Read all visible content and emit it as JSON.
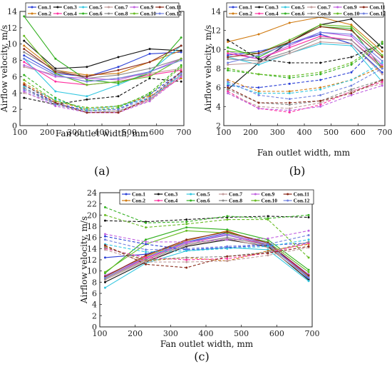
{
  "legend_labels": [
    "Con.1",
    "Con.2",
    "Con.3",
    "Con.4",
    "Con.5",
    "Con.6",
    "Con.7",
    "Con.8",
    "Con.9",
    "Con.10",
    "Con.11",
    "Con.12"
  ],
  "colors": {
    "Con.1": "#2a3fd6",
    "Con.2": "#d07a10",
    "Con.3": "#111111",
    "Con.4": "#ff30a0",
    "Con.5": "#33c7e0",
    "Con.6": "#33b021",
    "Con.7": "#c09a9a",
    "Con.8": "#888888",
    "Con.9": "#c060e0",
    "Con.10": "#66bb22",
    "Con.11": "#8a2a1a",
    "Con.12": "#7080e0"
  },
  "chart_data": [
    {
      "type": "line",
      "panel_label": "(a)",
      "xlabel": "Fan outlet width, mm",
      "ylabel": "Airflow velocity, m/s",
      "xlim": [
        100,
        700
      ],
      "ylim": [
        0,
        14
      ],
      "xticks": [
        100,
        200,
        300,
        400,
        500,
        600,
        700
      ],
      "yticks": [
        0,
        2,
        4,
        6,
        8,
        10,
        12,
        14
      ],
      "x": [
        115,
        230,
        345,
        460,
        575,
        690
      ],
      "series": [
        {
          "name": "Con.1",
          "style": "solid",
          "values": [
            8.6,
            6.4,
            6.0,
            7.2,
            8.8,
            9.0
          ]
        },
        {
          "name": "Con.2",
          "style": "solid",
          "values": [
            9.8,
            6.8,
            6.2,
            6.4,
            7.8,
            9.2
          ]
        },
        {
          "name": "Con.3",
          "style": "solid",
          "values": [
            10.4,
            7.0,
            7.2,
            8.4,
            9.4,
            9.2
          ]
        },
        {
          "name": "Con.4",
          "style": "solid",
          "values": [
            7.8,
            5.4,
            5.0,
            5.4,
            6.2,
            6.8
          ]
        },
        {
          "name": "Con.5",
          "style": "solid",
          "values": [
            8.2,
            4.2,
            3.6,
            5.0,
            6.6,
            9.8
          ]
        },
        {
          "name": "Con.6",
          "style": "solid",
          "values": [
            13.4,
            8.2,
            5.6,
            5.2,
            6.4,
            10.8
          ]
        },
        {
          "name": "Con.7",
          "style": "solid",
          "values": [
            7.2,
            6.2,
            5.4,
            5.8,
            6.4,
            7.0
          ]
        },
        {
          "name": "Con.8",
          "style": "solid",
          "values": [
            9.0,
            6.8,
            5.8,
            6.2,
            7.0,
            8.2
          ]
        },
        {
          "name": "Con.9",
          "style": "solid",
          "values": [
            7.4,
            6.0,
            5.8,
            5.6,
            6.6,
            8.2
          ]
        },
        {
          "name": "Con.10",
          "style": "solid",
          "values": [
            11.0,
            6.4,
            5.0,
            5.4,
            6.0,
            8.2
          ]
        },
        {
          "name": "Con.11",
          "style": "solid",
          "values": [
            9.4,
            6.6,
            6.0,
            6.8,
            7.8,
            9.8
          ]
        },
        {
          "name": "Con.12",
          "style": "solid",
          "values": [
            8.2,
            6.2,
            5.4,
            5.8,
            6.6,
            8.0
          ]
        },
        {
          "name": "Con.1",
          "style": "dashed",
          "values": [
            4.6,
            2.8,
            1.8,
            2.0,
            3.8,
            6.6
          ]
        },
        {
          "name": "Con.2",
          "style": "dashed",
          "values": [
            5.2,
            3.0,
            2.0,
            2.4,
            3.6,
            5.8
          ]
        },
        {
          "name": "Con.3",
          "style": "dashed",
          "values": [
            3.4,
            2.6,
            3.2,
            3.6,
            5.8,
            5.4
          ]
        },
        {
          "name": "Con.4",
          "style": "dashed",
          "values": [
            5.0,
            2.8,
            1.6,
            1.6,
            3.2,
            6.0
          ]
        },
        {
          "name": "Con.5",
          "style": "dashed",
          "values": [
            4.8,
            3.2,
            2.0,
            2.4,
            3.4,
            6.2
          ]
        },
        {
          "name": "Con.6",
          "style": "dashed",
          "values": [
            6.2,
            3.4,
            1.8,
            2.2,
            4.0,
            7.4
          ]
        },
        {
          "name": "Con.7",
          "style": "dashed",
          "values": [
            4.0,
            2.8,
            1.6,
            1.8,
            3.0,
            6.6
          ]
        },
        {
          "name": "Con.8",
          "style": "dashed",
          "values": [
            4.6,
            2.6,
            1.6,
            1.8,
            3.2,
            6.2
          ]
        },
        {
          "name": "Con.9",
          "style": "dashed",
          "values": [
            4.2,
            2.4,
            1.6,
            1.6,
            3.0,
            6.0
          ]
        },
        {
          "name": "Con.10",
          "style": "dashed",
          "values": [
            5.6,
            3.0,
            2.2,
            2.4,
            3.8,
            7.2
          ]
        },
        {
          "name": "Con.11",
          "style": "dashed",
          "values": [
            5.0,
            2.8,
            1.6,
            1.6,
            3.4,
            6.6
          ]
        },
        {
          "name": "Con.12",
          "style": "dashed",
          "values": [
            4.4,
            2.6,
            1.8,
            2.0,
            3.4,
            6.4
          ]
        }
      ]
    },
    {
      "type": "line",
      "panel_label": "(b)",
      "xlabel": "Fan outlet width, mm",
      "ylabel": "Airflow velocity, m/s",
      "xlim": [
        100,
        700
      ],
      "ylim": [
        2,
        14
      ],
      "xticks": [
        100,
        200,
        300,
        400,
        500,
        600,
        700
      ],
      "yticks": [
        2,
        4,
        6,
        8,
        10,
        12,
        14
      ],
      "x": [
        115,
        230,
        345,
        460,
        575,
        690
      ],
      "series": [
        {
          "name": "Con.1",
          "style": "solid",
          "values": [
            9.4,
            9.8,
            10.6,
            11.6,
            10.6,
            7.6
          ]
        },
        {
          "name": "Con.2",
          "style": "solid",
          "values": [
            10.8,
            11.6,
            12.8,
            13.4,
            12.6,
            9.8
          ]
        },
        {
          "name": "Con.3",
          "style": "solid",
          "values": [
            5.8,
            8.6,
            10.8,
            12.6,
            13.2,
            10.2
          ]
        },
        {
          "name": "Con.4",
          "style": "solid",
          "values": [
            9.6,
            9.0,
            10.2,
            11.4,
            11.0,
            8.2
          ]
        },
        {
          "name": "Con.5",
          "style": "solid",
          "values": [
            9.2,
            8.4,
            9.6,
            10.6,
            10.4,
            6.6
          ]
        },
        {
          "name": "Con.6",
          "style": "solid",
          "values": [
            10.2,
            9.2,
            10.8,
            12.4,
            12.2,
            8.0
          ]
        },
        {
          "name": "Con.7",
          "style": "solid",
          "values": [
            8.4,
            8.6,
            9.6,
            10.8,
            10.6,
            7.4
          ]
        },
        {
          "name": "Con.8",
          "style": "solid",
          "values": [
            9.0,
            8.8,
            9.8,
            11.2,
            11.0,
            8.0
          ]
        },
        {
          "name": "Con.9",
          "style": "solid",
          "values": [
            9.8,
            9.0,
            10.4,
            11.8,
            11.4,
            8.4
          ]
        },
        {
          "name": "Con.10",
          "style": "solid",
          "values": [
            9.8,
            9.6,
            11.0,
            12.6,
            12.4,
            9.4
          ]
        },
        {
          "name": "Con.11",
          "style": "solid",
          "values": [
            9.2,
            9.6,
            10.8,
            12.4,
            12.0,
            9.2
          ]
        },
        {
          "name": "Con.12",
          "style": "solid",
          "values": [
            8.6,
            9.4,
            10.6,
            11.8,
            11.6,
            8.8
          ]
        },
        {
          "name": "Con.1",
          "style": "dashed",
          "values": [
            6.2,
            6.0,
            6.4,
            6.8,
            7.6,
            10.8
          ]
        },
        {
          "name": "Con.2",
          "style": "dashed",
          "values": [
            6.8,
            5.6,
            5.6,
            6.0,
            6.8,
            8.2
          ]
        },
        {
          "name": "Con.3",
          "style": "dashed",
          "values": [
            11.0,
            9.0,
            8.6,
            8.6,
            9.2,
            10.6
          ]
        },
        {
          "name": "Con.4",
          "style": "dashed",
          "values": [
            5.6,
            3.8,
            3.4,
            4.2,
            5.6,
            6.6
          ]
        },
        {
          "name": "Con.5",
          "style": "dashed",
          "values": [
            6.4,
            5.4,
            5.4,
            5.8,
            6.8,
            8.6
          ]
        },
        {
          "name": "Con.6",
          "style": "dashed",
          "values": [
            7.8,
            7.4,
            7.0,
            7.4,
            8.4,
            10.6
          ]
        },
        {
          "name": "Con.7",
          "style": "dashed",
          "values": [
            5.4,
            4.0,
            3.8,
            4.4,
            5.6,
            6.4
          ]
        },
        {
          "name": "Con.8",
          "style": "dashed",
          "values": [
            5.8,
            4.4,
            4.2,
            4.6,
            5.8,
            6.8
          ]
        },
        {
          "name": "Con.9",
          "style": "dashed",
          "values": [
            5.4,
            3.8,
            3.6,
            4.0,
            5.2,
            6.2
          ]
        },
        {
          "name": "Con.10",
          "style": "dashed",
          "values": [
            8.0,
            7.4,
            7.2,
            7.6,
            8.6,
            10.8
          ]
        },
        {
          "name": "Con.11",
          "style": "dashed",
          "values": [
            6.0,
            4.4,
            4.4,
            4.6,
            5.4,
            6.8
          ]
        },
        {
          "name": "Con.12",
          "style": "dashed",
          "values": [
            6.6,
            5.2,
            4.8,
            5.2,
            6.2,
            8.0
          ]
        }
      ]
    },
    {
      "type": "line",
      "panel_label": "(c)",
      "xlabel": "Fan outlet width, mm",
      "ylabel": "Airflow velocity, m/s",
      "xlim": [
        100,
        700
      ],
      "ylim": [
        0,
        24
      ],
      "xticks": [
        100,
        200,
        300,
        400,
        500,
        600,
        700
      ],
      "yticks": [
        0,
        2,
        4,
        6,
        8,
        10,
        12,
        14,
        16,
        18,
        20,
        22,
        24
      ],
      "x": [
        115,
        230,
        345,
        460,
        575,
        690
      ],
      "series": [
        {
          "name": "Con.1",
          "style": "solid",
          "values": [
            12.4,
            13.0,
            15.2,
            16.8,
            15.2,
            8.6
          ]
        },
        {
          "name": "Con.2",
          "style": "solid",
          "values": [
            9.0,
            12.6,
            15.4,
            17.2,
            14.6,
            9.0
          ]
        },
        {
          "name": "Con.3",
          "style": "solid",
          "values": [
            8.0,
            11.6,
            14.4,
            15.6,
            14.4,
            8.4
          ]
        },
        {
          "name": "Con.4",
          "style": "solid",
          "values": [
            8.8,
            12.2,
            15.0,
            16.4,
            14.6,
            9.2
          ]
        },
        {
          "name": "Con.5",
          "style": "solid",
          "values": [
            7.0,
            11.4,
            13.6,
            14.2,
            13.8,
            8.2
          ]
        },
        {
          "name": "Con.6",
          "style": "solid",
          "values": [
            9.6,
            15.6,
            17.8,
            17.4,
            15.6,
            10.2
          ]
        },
        {
          "name": "Con.7",
          "style": "solid",
          "values": [
            8.4,
            11.8,
            14.6,
            15.8,
            14.2,
            8.8
          ]
        },
        {
          "name": "Con.8",
          "style": "solid",
          "values": [
            8.6,
            12.0,
            14.8,
            16.0,
            14.6,
            9.0
          ]
        },
        {
          "name": "Con.9",
          "style": "solid",
          "values": [
            9.2,
            12.4,
            15.0,
            16.6,
            15.0,
            9.4
          ]
        },
        {
          "name": "Con.10",
          "style": "solid",
          "values": [
            9.8,
            14.8,
            17.2,
            16.8,
            15.2,
            9.8
          ]
        },
        {
          "name": "Con.11",
          "style": "solid",
          "values": [
            9.0,
            12.8,
            15.6,
            17.0,
            15.0,
            9.2
          ]
        },
        {
          "name": "Con.12",
          "style": "solid",
          "values": [
            8.8,
            12.4,
            15.2,
            16.4,
            14.8,
            8.8
          ]
        },
        {
          "name": "Con.1",
          "style": "dashed",
          "values": [
            16.2,
            14.8,
            13.8,
            14.2,
            14.6,
            15.0
          ]
        },
        {
          "name": "Con.2",
          "style": "dashed",
          "values": [
            14.4,
            11.8,
            12.4,
            11.8,
            13.6,
            14.8
          ]
        },
        {
          "name": "Con.3",
          "style": "dashed",
          "values": [
            19.0,
            18.8,
            19.2,
            19.6,
            19.8,
            19.6
          ]
        },
        {
          "name": "Con.4",
          "style": "dashed",
          "values": [
            14.0,
            12.4,
            12.0,
            12.2,
            13.2,
            15.0
          ]
        },
        {
          "name": "Con.5",
          "style": "dashed",
          "values": [
            14.8,
            13.4,
            13.6,
            14.0,
            14.4,
            15.6
          ]
        },
        {
          "name": "Con.6",
          "style": "dashed",
          "values": [
            21.4,
            18.6,
            18.8,
            19.8,
            19.4,
            20.0
          ]
        },
        {
          "name": "Con.7",
          "style": "dashed",
          "values": [
            13.8,
            11.6,
            11.6,
            11.8,
            12.8,
            14.2
          ]
        },
        {
          "name": "Con.8",
          "style": "dashed",
          "values": [
            14.2,
            12.0,
            12.4,
            12.6,
            13.4,
            15.2
          ]
        },
        {
          "name": "Con.9",
          "style": "dashed",
          "values": [
            16.6,
            15.2,
            15.2,
            15.6,
            15.8,
            17.2
          ]
        },
        {
          "name": "Con.10",
          "style": "dashed",
          "values": [
            20.0,
            17.8,
            18.4,
            19.2,
            19.2,
            12.4
          ]
        },
        {
          "name": "Con.11",
          "style": "dashed",
          "values": [
            14.6,
            11.2,
            10.6,
            12.6,
            13.2,
            14.4
          ]
        },
        {
          "name": "Con.12",
          "style": "dashed",
          "values": [
            15.6,
            13.8,
            14.0,
            14.4,
            14.8,
            16.4
          ]
        }
      ]
    }
  ]
}
